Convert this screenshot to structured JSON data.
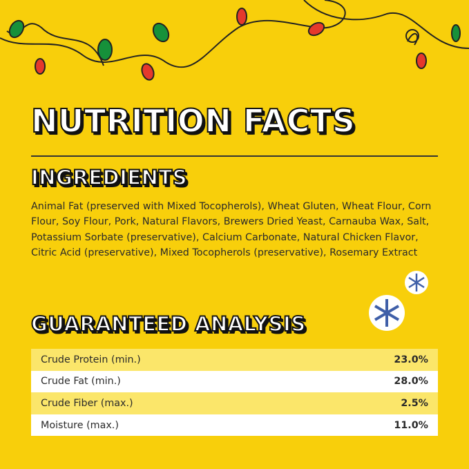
{
  "title": "NUTRITION FACTS",
  "ingredients": {
    "heading": "INGREDIENTS",
    "text": "Animal Fat (preserved with Mixed Tocopherols), Wheat Gluten, Wheat Flour, Corn Flour, Soy Flour, Pork, Natural Flavors, Brewers Dried Yeast, Carnauba Wax, Salt, Potassium Sorbate (preservative), Calcium Carbonate, Natural Chicken Flavor, Citric Acid (preservative), Mixed Tocopherols (preservative), Rosemary Extract"
  },
  "analysis": {
    "heading": "GUARANTEED ANALYSIS",
    "rows": [
      [
        "Crude Protein (min.)",
        "23.0%"
      ],
      [
        "Crude Fat (min.)",
        "28.0%"
      ],
      [
        "Crude Fiber (max.)",
        "2.5%"
      ],
      [
        "Moisture (max.)",
        "11.0%"
      ]
    ]
  }
}
